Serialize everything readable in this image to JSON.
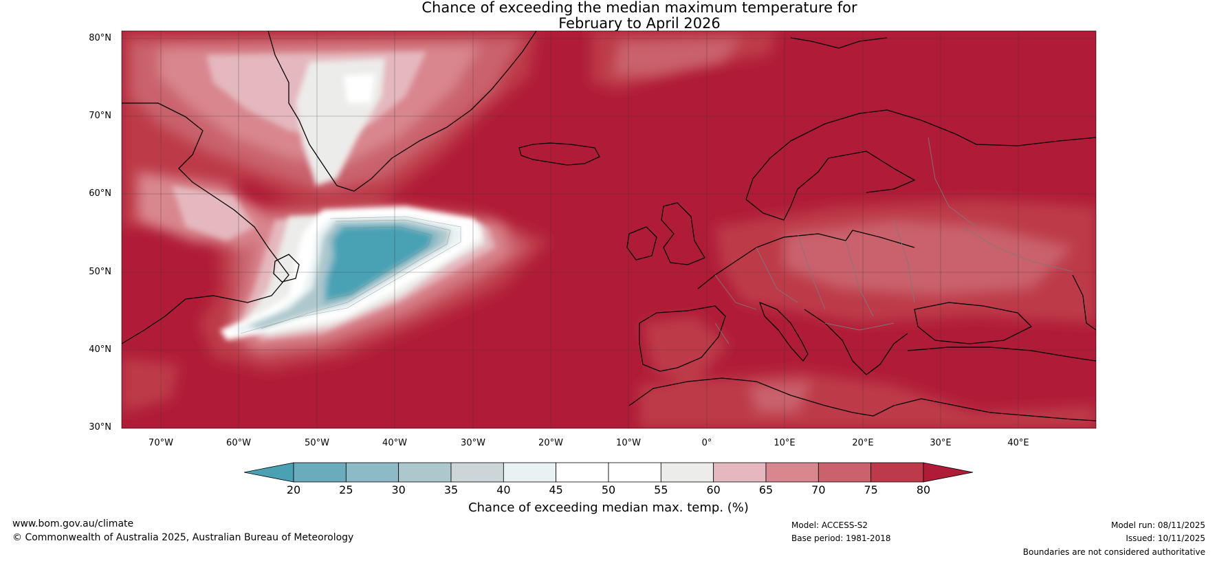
{
  "title": {
    "line1": "Chance of exceeding the median maximum temperature for",
    "line2": "February to April 2026"
  },
  "map": {
    "lat_labels": [
      "80°N",
      "70°N",
      "60°N",
      "50°N",
      "40°N",
      "30°N"
    ],
    "lon_labels": [
      "70°W",
      "60°W",
      "50°W",
      "40°W",
      "30°W",
      "20°W",
      "10°W",
      "0°",
      "10°E",
      "20°E",
      "30°E",
      "40°E"
    ],
    "lon_range": [
      -75,
      50
    ],
    "lat_range": [
      30,
      81
    ]
  },
  "colorbar": {
    "ticks": [
      "20",
      "25",
      "30",
      "35",
      "40",
      "45",
      "50",
      "55",
      "60",
      "65",
      "70",
      "75",
      "80"
    ],
    "colors": [
      "#4aa1b4",
      "#6aacbc",
      "#8cbac6",
      "#adc8cd",
      "#ccd6d9",
      "#e9f1f2",
      "#ffffff",
      "#ffffff",
      "#ececea",
      "#e4b8be",
      "#d9878f",
      "#c9626c",
      "#bd3a4a",
      "#b01c37"
    ],
    "label": "Chance of exceeding median max. temp. (%)"
  },
  "footer": {
    "website": "www.bom.gov.au/climate",
    "copyright": "© Commonwealth of Australia 2025, Australian Bureau of Meteorology",
    "model": "Model: ACCESS-S2",
    "base_period": "Base period: 1981-2018",
    "model_run": "Model run: 08/11/2025",
    "issued": "Issued: 10/11/2025",
    "disclaimer": "Boundaries are not considered authoritative"
  }
}
